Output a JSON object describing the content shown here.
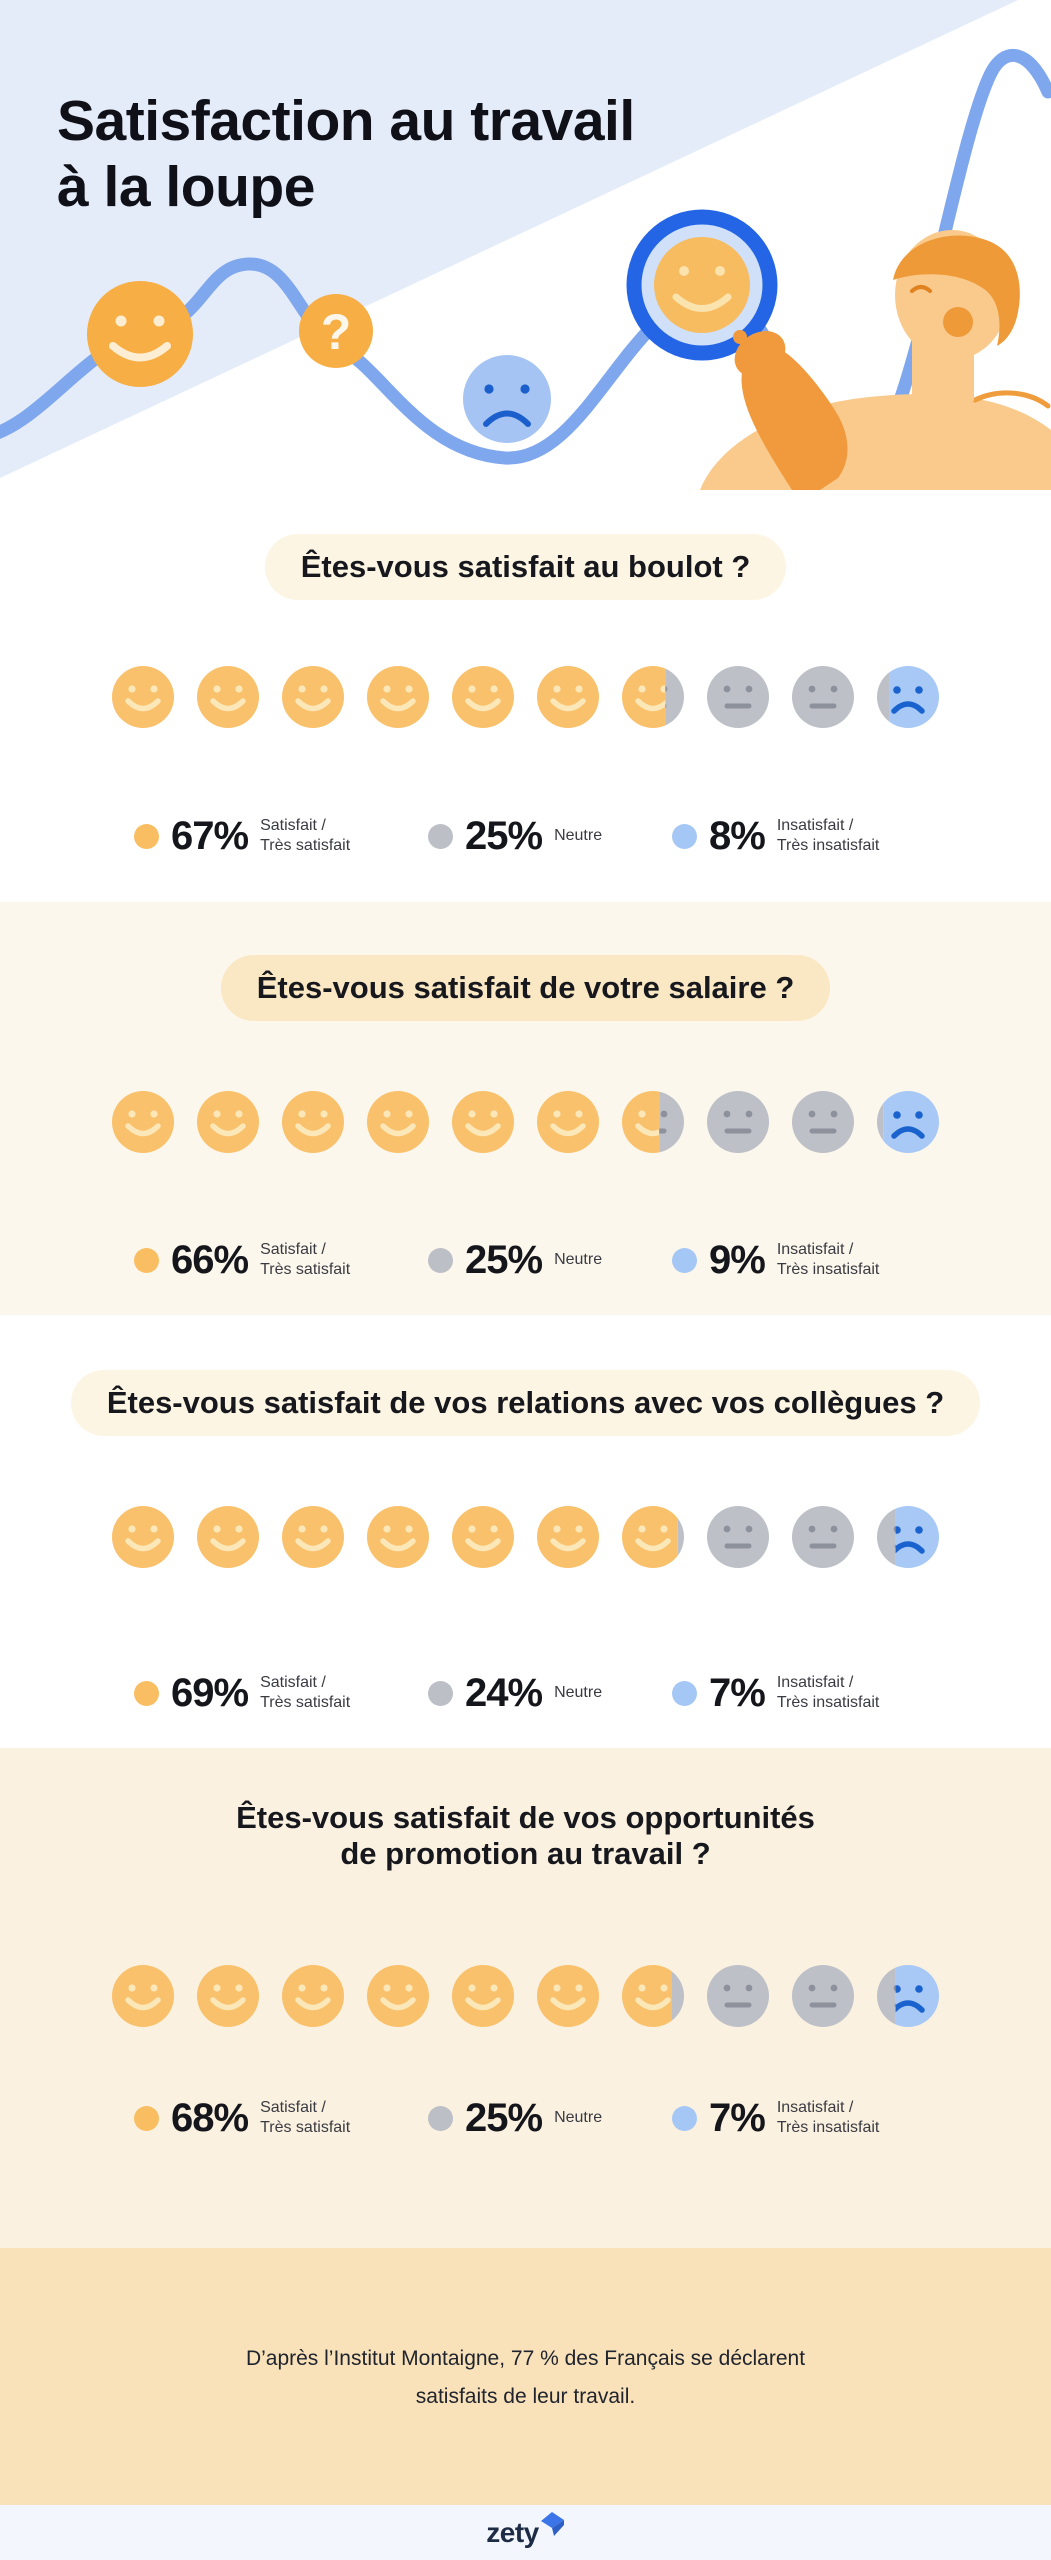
{
  "header": {
    "title_line1": "Satisfaction au travail",
    "title_line2": "à la loupe"
  },
  "sections": [
    {
      "question": "Êtes-vous satisfait au boulot ?",
      "question2": "",
      "satisfied": "67%",
      "neutral": "25%",
      "unsatisfied": "8%"
    },
    {
      "question": "Êtes-vous satisfait de votre salaire ?",
      "question2": "",
      "satisfied": "66%",
      "neutral": "25%",
      "unsatisfied": "9%"
    },
    {
      "question": "Êtes-vous satisfait de vos relations avec vos collègues ?",
      "question2": "",
      "satisfied": "69%",
      "neutral": "24%",
      "unsatisfied": "7%"
    },
    {
      "question": "Êtes-vous satisfait de vos opportunités",
      "question2": "de promotion au travail ?",
      "satisfied": "68%",
      "neutral": "25%",
      "unsatisfied": "7%"
    }
  ],
  "legend": {
    "satisfied": {
      "line1": "Satisfait /",
      "line2": "Très satisfait"
    },
    "neutral": {
      "label": "Neutre"
    },
    "unsatisfied": {
      "line1": "Insatisfait /",
      "line2": "Très insatisfait"
    }
  },
  "footer": {
    "line1": "D’après l’Institut Montaigne, 77 % des Français se déclarent",
    "line2": "satisfaits de leur travail."
  },
  "brand": {
    "logo_text": "zety"
  },
  "colors": {
    "header_bg": "#E4ECFA",
    "wave_blue": "#7FA7EE",
    "illustration_orange": "#F6AE45",
    "person_skin": "#F9CA8C",
    "person_dark_orange": "#EF9A38",
    "magnifier_ring": "#2365E5",
    "magnifier_lens": "#CFE0F8",
    "face_orange": "#F9C16B",
    "face_orange_features": "#FBE7B8",
    "face_gray": "#BDC0C7",
    "face_gray_features": "#8D919C",
    "face_blue": "#A8C8F6",
    "face_blue_features": "#1A63CF",
    "section_cream_light": "#FCF7EC",
    "section_cream_deep": "#FAF1E0",
    "pill_cream": "#FDF5E3",
    "pill_peach": "#FAE7C3",
    "footer_peach": "#F9E2B9",
    "brandbar_bg": "#F3F7FD",
    "logo_navy": "#1D2B45",
    "logo_blue": "#3C75E8"
  },
  "chart_data": {
    "type": "pictograph",
    "unit": "1 face = 10%",
    "categories": [
      "Êtes-vous satisfait au boulot ?",
      "Êtes-vous satisfait de votre salaire ?",
      "Êtes-vous satisfait de vos relations avec vos collègues ?",
      "Êtes-vous satisfait de vos opportunités de promotion au travail ?"
    ],
    "series": [
      {
        "name": "Satisfait / Très satisfait",
        "values": [
          67,
          66,
          69,
          68
        ],
        "color": "#F9C16B"
      },
      {
        "name": "Neutre",
        "values": [
          25,
          25,
          24,
          25
        ],
        "color": "#BDC0C7"
      },
      {
        "name": "Insatisfait / Très insatisfait",
        "values": [
          8,
          9,
          7,
          7
        ],
        "color": "#A8C8F6"
      }
    ],
    "title": "Satisfaction au travail à la loupe",
    "source_note": "D’après l’Institut Montaigne, 77 % des Français se déclarent satisfaits de leur travail."
  }
}
